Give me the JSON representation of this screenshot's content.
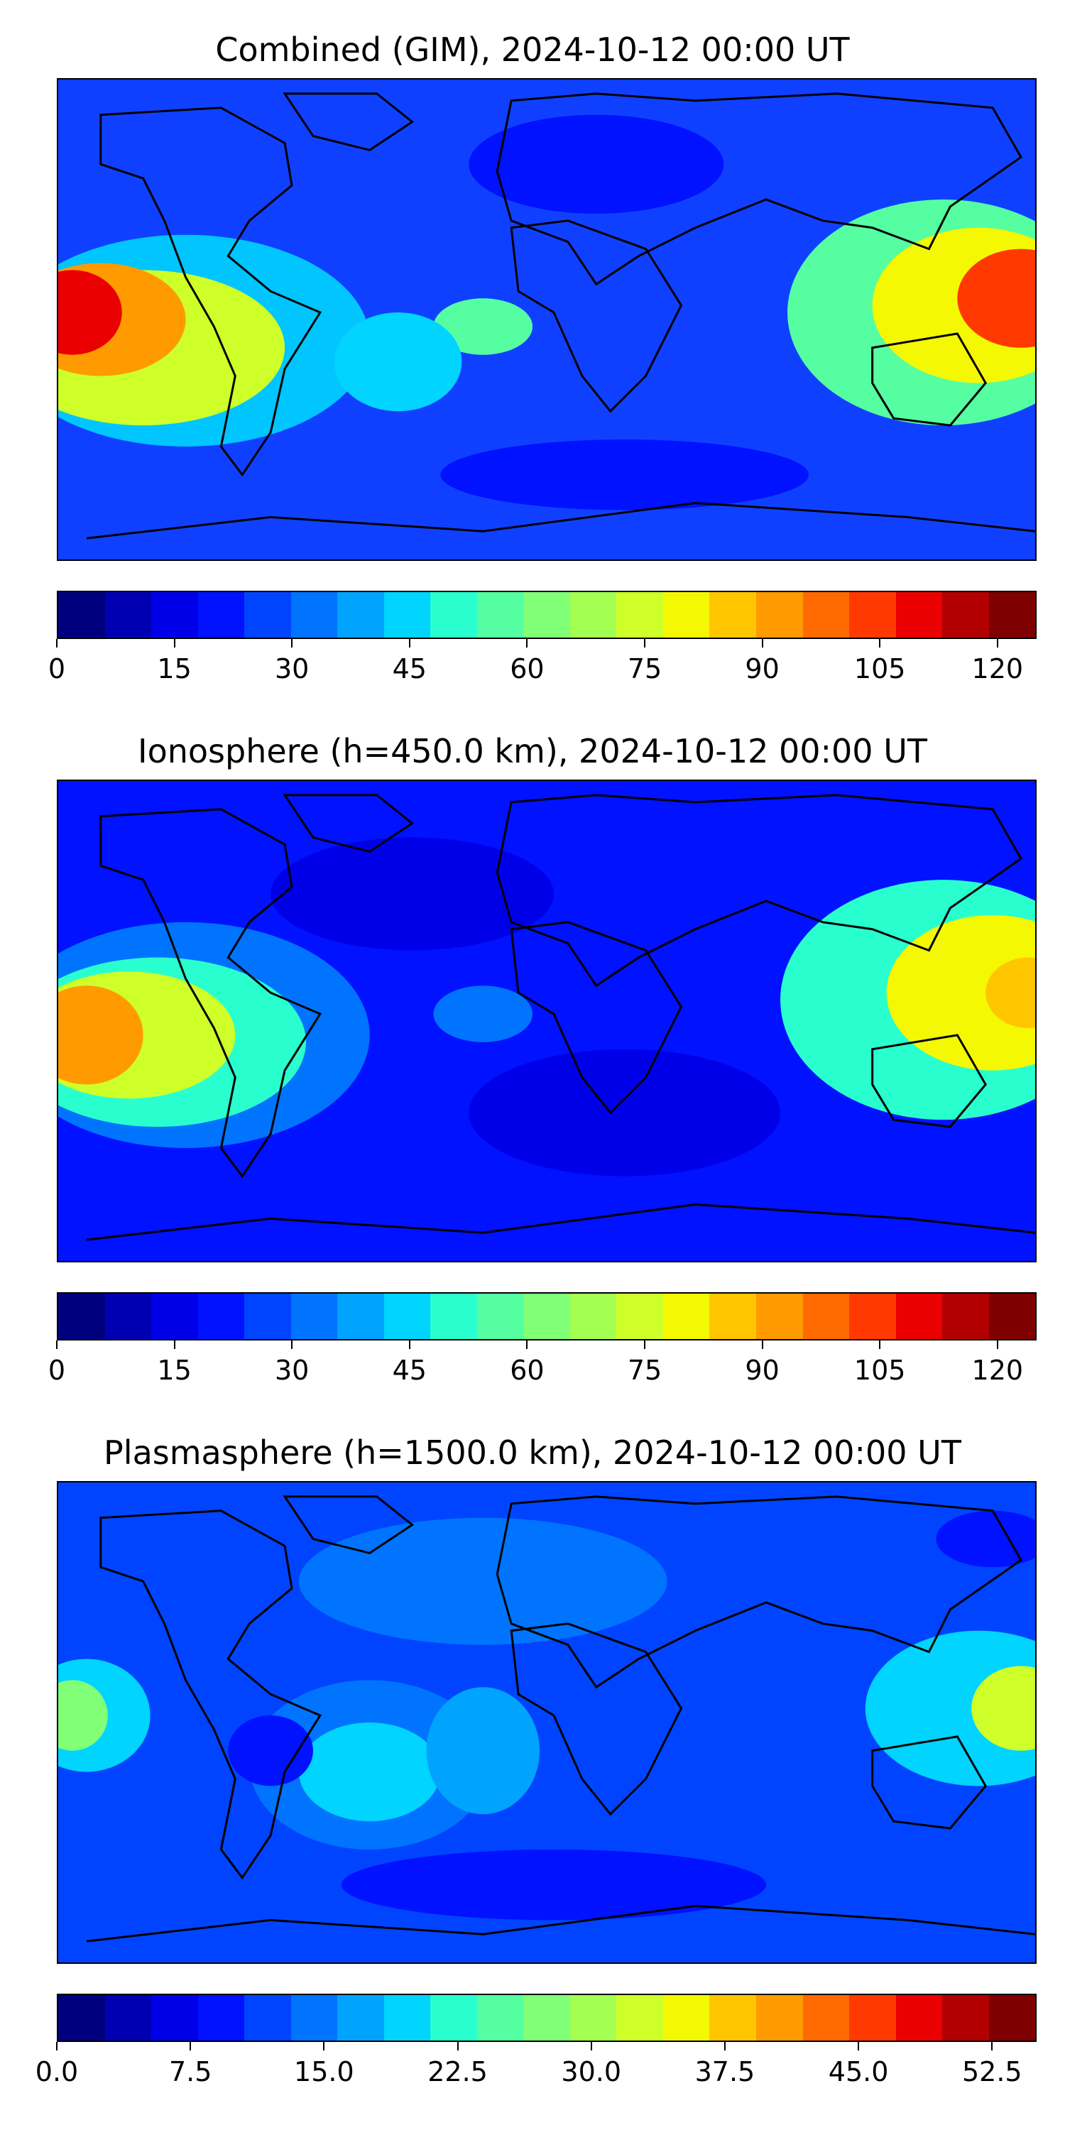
{
  "panels": [
    {
      "title": "Combined (GIM), 2024-10-12 00:00 UT",
      "colorbar_ticks": [
        "0",
        "15",
        "30",
        "45",
        "60",
        "75",
        "90",
        "105",
        "120"
      ],
      "vmin": 0,
      "vmax": 125,
      "tick_step": 15
    },
    {
      "title": "Ionosphere  (h=450.0 km), 2024-10-12 00:00 UT",
      "colorbar_ticks": [
        "0",
        "15",
        "30",
        "45",
        "60",
        "75",
        "90",
        "105",
        "120"
      ],
      "vmin": 0,
      "vmax": 125,
      "tick_step": 15
    },
    {
      "title": "Plasmasphere (h=1500.0 km), 2024-10-12 00:00 UT",
      "colorbar_ticks": [
        "0.0",
        "7.5",
        "15.0",
        "22.5",
        "30.0",
        "37.5",
        "45.0",
        "52.5"
      ],
      "vmin": 0,
      "vmax": 55,
      "tick_step": 7.5
    }
  ],
  "colormap": "jet",
  "colorbar_colors": [
    "#00007f",
    "#0000b2",
    "#0000e8",
    "#0012ff",
    "#0044ff",
    "#0074ff",
    "#00a4ff",
    "#00d4ff",
    "#29ffce",
    "#55ffa1",
    "#80ff77",
    "#a4ff53",
    "#ceff29",
    "#f4f802",
    "#ffc600",
    "#ff9a00",
    "#ff6a00",
    "#ff3900",
    "#ea0000",
    "#b20000",
    "#7f0000"
  ]
}
